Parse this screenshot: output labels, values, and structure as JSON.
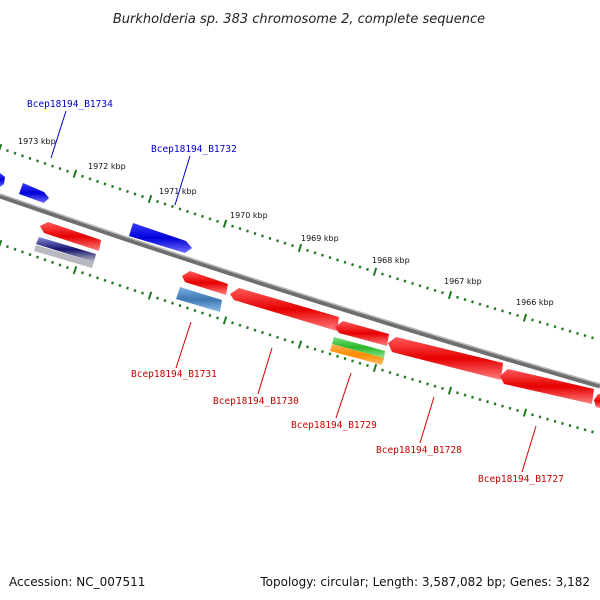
{
  "title": "Burkholderia sp. 383 chromosome 2, complete sequence",
  "footer": {
    "accession": "Accession: NC_007511",
    "topology": "Topology: circular; Length: 3,587,082 bp; Genes: 3,182"
  },
  "colors": {
    "forward_cds": "#0a0ad8",
    "reverse_cds": "#e00000",
    "backbone": "#888888",
    "ticks": "#1f7a1f",
    "forward_label": "#0000cc",
    "reverse_label": "#cc0000"
  },
  "tick_labels": [
    "1973 kbp",
    "1972 kbp",
    "1971 kbp",
    "1970 kbp",
    "1969 kbp",
    "1968 kbp",
    "1967 kbp",
    "1966 kbp"
  ],
  "gene_labels": {
    "B1734": "Bcep18194_B1734",
    "B1732": "Bcep18194_B1732",
    "B1731": "Bcep18194_B1731",
    "B1730": "Bcep18194_B1730",
    "B1729": "Bcep18194_B1729",
    "B1728": "Bcep18194_B1728",
    "B1727": "Bcep18194_B1727"
  }
}
